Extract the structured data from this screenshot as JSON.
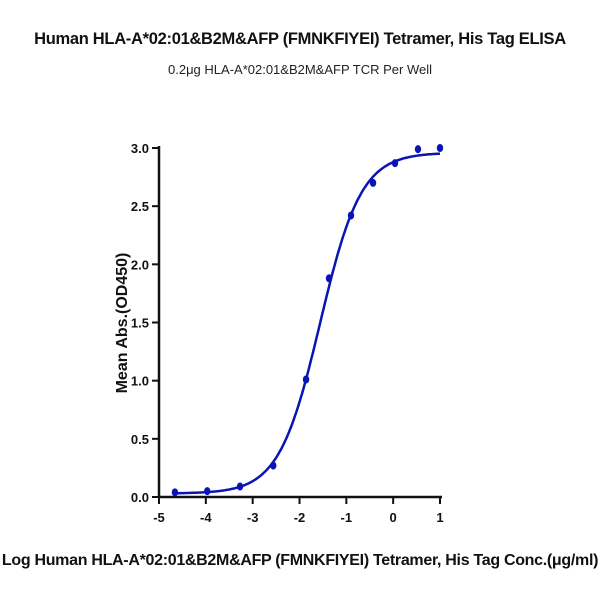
{
  "chart_data": {
    "type": "scatter",
    "title": "Human HLA-A*02:01&B2M&AFP (FMNKFIYEI) Tetramer, His Tag ELISA",
    "subtitle": "0.2μg HLA-A*02:01&B2M&AFP TCR Per Well",
    "xlabel": "Log Human HLA-A*02:01&B2M&AFP (FMNKFIYEI) Tetramer, His Tag Conc.(μg/ml)",
    "ylabel": "Mean Abs.(OD450)",
    "xlim": [
      -5,
      1
    ],
    "ylim": [
      0,
      3.0
    ],
    "xticks": [
      "-5",
      "-4",
      "-3",
      "-2",
      "-1",
      "0",
      "1"
    ],
    "yticks": [
      "0.0",
      "0.5",
      "1.0",
      "1.5",
      "2.0",
      "2.5",
      "3.0"
    ],
    "grid": false,
    "color": "#0a14b4",
    "points": {
      "x": [
        -4.66,
        -3.97,
        -3.27,
        -2.56,
        -1.86,
        -1.37,
        -0.9,
        -0.43,
        0.04,
        0.53,
        1.0
      ],
      "y": [
        0.04,
        0.05,
        0.09,
        0.27,
        1.01,
        1.88,
        2.42,
        2.7,
        2.87,
        2.99,
        3.0
      ]
    },
    "fit": {
      "model": "4PL",
      "bottom": 0.03,
      "top": 2.96,
      "logEC50": -1.56,
      "hill": 0.99
    }
  }
}
